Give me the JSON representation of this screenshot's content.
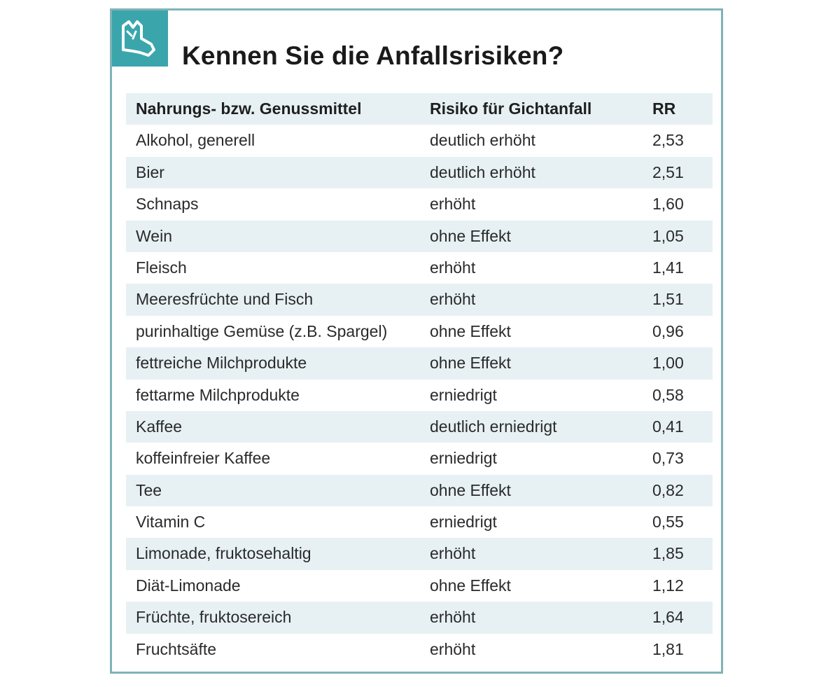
{
  "title": "Kennen Sie die Anfallsrisiken?",
  "logo_icon": "gout-foot-logo-icon",
  "colors": {
    "accent": "#3aa6ac",
    "border": "#7fb3b8",
    "row_shade": "#e7f1f4"
  },
  "table": {
    "headers": [
      "Nahrungs- bzw. Genussmittel",
      "Risiko für Gichtanfall",
      "RR"
    ],
    "rows": [
      [
        "Alkohol, generell",
        "deutlich erhöht",
        "2,53"
      ],
      [
        "Bier",
        "deutlich erhöht",
        "2,51"
      ],
      [
        "Schnaps",
        "erhöht",
        "1,60"
      ],
      [
        "Wein",
        "ohne Effekt",
        "1,05"
      ],
      [
        "Fleisch",
        "erhöht",
        "1,41"
      ],
      [
        "Meeresfrüchte und Fisch",
        "erhöht",
        "1,51"
      ],
      [
        "purinhaltige Gemüse (z.B. Spargel)",
        "ohne Effekt",
        "0,96"
      ],
      [
        "fettreiche Milchprodukte",
        "ohne Effekt",
        "1,00"
      ],
      [
        "fettarme Milchprodukte",
        "erniedrigt",
        "0,58"
      ],
      [
        "Kaffee",
        "deutlich erniedrigt",
        "0,41"
      ],
      [
        "koffeinfreier Kaffee",
        "erniedrigt",
        "0,73"
      ],
      [
        "Tee",
        "ohne Effekt",
        "0,82"
      ],
      [
        "Vitamin C",
        "erniedrigt",
        "0,55"
      ],
      [
        "Limonade, fruktosehaltig",
        "erhöht",
        "1,85"
      ],
      [
        "Diät-Limonade",
        "ohne Effekt",
        "1,12"
      ],
      [
        "Früchte, fruktosereich",
        "erhöht",
        "1,64"
      ],
      [
        "Fruchtsäfte",
        "erhöht",
        "1,81"
      ]
    ]
  }
}
